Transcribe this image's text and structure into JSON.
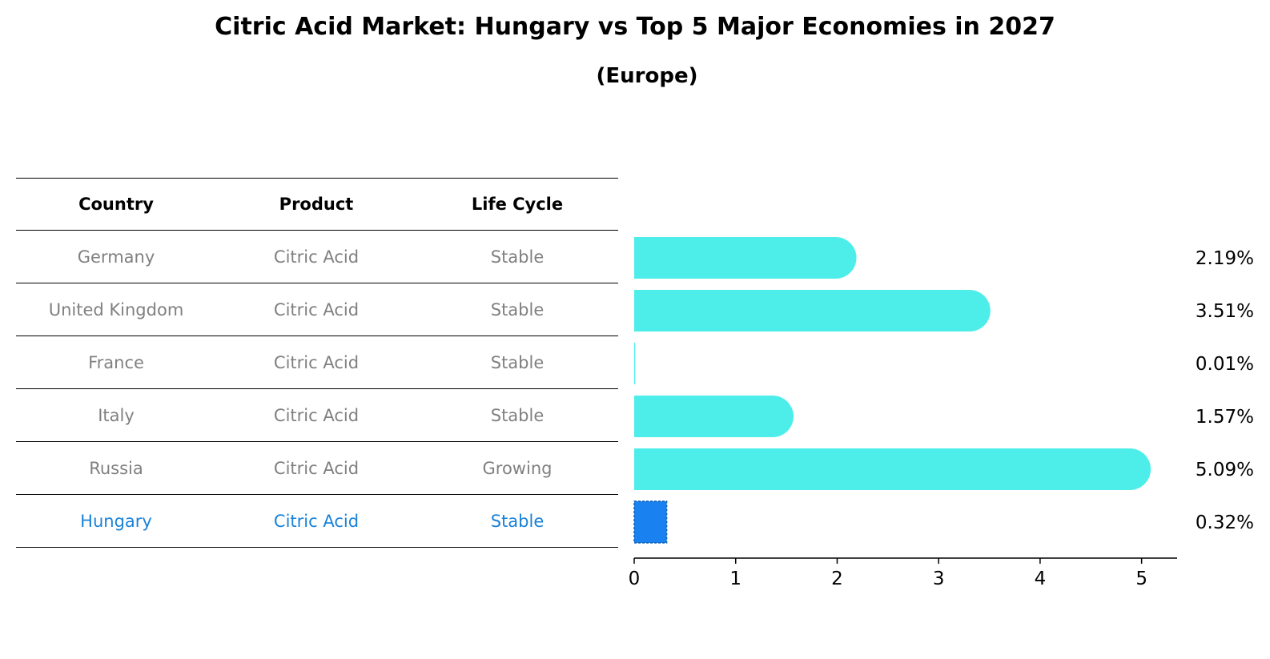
{
  "title": "Citric Acid Market: Hungary vs Top 5 Major Economies in 2027",
  "subtitle": "(Europe)",
  "table": {
    "headers": [
      "Country",
      "Product",
      "Life Cycle"
    ],
    "rows": [
      {
        "country": "Germany",
        "product": "Citric Acid",
        "life_cycle": "Stable"
      },
      {
        "country": "United Kingdom",
        "product": "Citric Acid",
        "life_cycle": "Stable"
      },
      {
        "country": "France",
        "product": "Citric Acid",
        "life_cycle": "Stable"
      },
      {
        "country": "Italy",
        "product": "Citric Acid",
        "life_cycle": "Stable"
      },
      {
        "country": "Russia",
        "product": "Citric Acid",
        "life_cycle": "Growing"
      },
      {
        "country": "Hungary",
        "product": "Citric Acid",
        "life_cycle": "Stable"
      }
    ]
  },
  "colors": {
    "bar": "#4deeea",
    "highlight": "#1a82f0",
    "muted_text": "#808080",
    "highlight_text": "#1a82d8"
  },
  "chart_data": {
    "type": "bar",
    "orientation": "horizontal",
    "categories": [
      "Germany",
      "United Kingdom",
      "France",
      "Italy",
      "Russia",
      "Hungary"
    ],
    "values": [
      2.19,
      3.51,
      0.01,
      1.57,
      5.09,
      0.32
    ],
    "value_labels": [
      "2.19%",
      "3.51%",
      "0.01%",
      "1.57%",
      "5.09%",
      "0.32%"
    ],
    "highlight": "Hungary",
    "xticks": [
      0,
      1,
      2,
      3,
      4,
      5
    ],
    "xlim": [
      0,
      5.35
    ],
    "xlabel": "",
    "ylabel": ""
  }
}
